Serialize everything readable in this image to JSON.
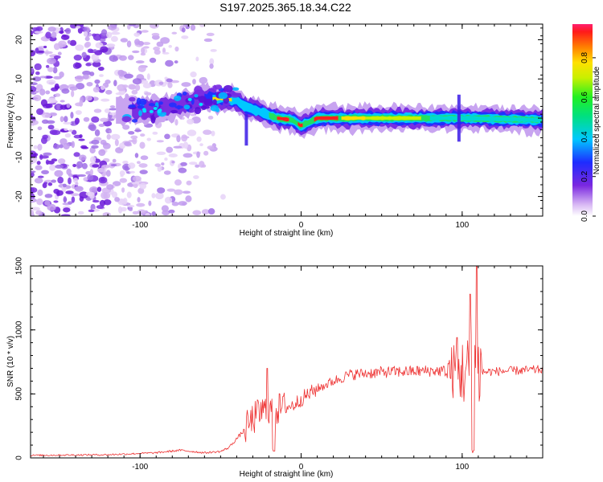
{
  "title": "S197.2025.365.18.34.C22",
  "chart_data": [
    {
      "type": "heatmap",
      "xlabel": "Height of straight line (km)",
      "ylabel": "Frequency (Hz)",
      "xlim": [
        -168,
        150
      ],
      "ylim": [
        -25,
        24
      ],
      "xticks": [
        -100,
        0,
        100
      ],
      "yticks": [
        20,
        10,
        0,
        -10,
        -20
      ],
      "colorbar": {
        "label": "Normalized spectral amplitude",
        "range": [
          0,
          0.97
        ],
        "ticks": [
          0,
          0.2,
          0.4,
          0.6,
          0.8
        ],
        "tick_labels": [
          "0.0",
          "0.2",
          "0.4",
          "0.6",
          "0.8"
        ]
      },
      "ridge": [
        {
          "x": -100,
          "f": 2.0
        },
        {
          "x": -80,
          "f": 3.0
        },
        {
          "x": -60,
          "f": 5.0
        },
        {
          "x": -50,
          "f": 5.0
        },
        {
          "x": -40,
          "f": 4.5
        },
        {
          "x": -35,
          "f": 3.0
        },
        {
          "x": -25,
          "f": 1.5
        },
        {
          "x": -15,
          "f": 0.0
        },
        {
          "x": -5,
          "f": -0.5
        },
        {
          "x": 0,
          "f": -2.0
        },
        {
          "x": 10,
          "f": 0.0
        },
        {
          "x": 50,
          "f": 0.0
        },
        {
          "x": 100,
          "f": 0.0
        },
        {
          "x": 150,
          "f": -0.5
        }
      ]
    },
    {
      "type": "line",
      "xlabel": "Height of straight line (km)",
      "ylabel": "SNR (10 * v/v)",
      "xlim": [
        -168,
        150
      ],
      "ylim": [
        0,
        1500
      ],
      "xticks": [
        -100,
        0,
        100
      ],
      "yticks": [
        0,
        500,
        1000,
        1500
      ],
      "color": "#ee3333",
      "envelope": [
        {
          "x": -168,
          "y": 20
        },
        {
          "x": -120,
          "y": 25
        },
        {
          "x": -90,
          "y": 40
        },
        {
          "x": -75,
          "y": 60
        },
        {
          "x": -60,
          "y": 40
        },
        {
          "x": -50,
          "y": 50
        },
        {
          "x": -45,
          "y": 80
        },
        {
          "x": -40,
          "y": 150
        },
        {
          "x": -35,
          "y": 220
        },
        {
          "x": -30,
          "y": 300
        },
        {
          "x": -25,
          "y": 360
        },
        {
          "x": -15,
          "y": 380
        },
        {
          "x": -5,
          "y": 410
        },
        {
          "x": 0,
          "y": 460
        },
        {
          "x": 10,
          "y": 540
        },
        {
          "x": 20,
          "y": 600
        },
        {
          "x": 30,
          "y": 650
        },
        {
          "x": 50,
          "y": 670
        },
        {
          "x": 80,
          "y": 680
        },
        {
          "x": 90,
          "y": 680
        },
        {
          "x": 100,
          "y": 670
        },
        {
          "x": 110,
          "y": 670
        },
        {
          "x": 150,
          "y": 690
        }
      ],
      "features": [
        {
          "x": -22,
          "y": 700
        },
        {
          "x": -18,
          "y": 50
        },
        {
          "x": 97,
          "y": 950
        },
        {
          "x": 105,
          "y": 1300
        },
        {
          "x": 107,
          "y": 50
        },
        {
          "x": 109,
          "y": 1500
        }
      ]
    }
  ]
}
